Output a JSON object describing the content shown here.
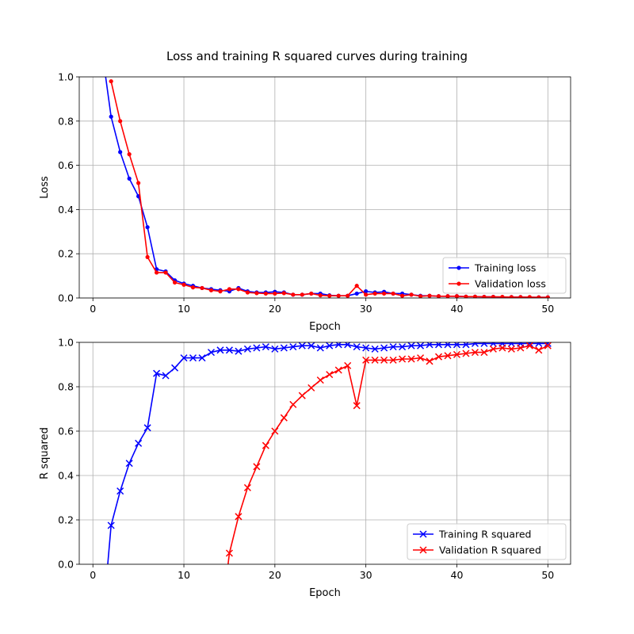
{
  "title": "Loss and training R squared curves during training",
  "chart_data": [
    {
      "type": "line",
      "xlabel": "Epoch",
      "ylabel": "Loss",
      "xlim": [
        -1.5,
        52.5
      ],
      "ylim": [
        0,
        1
      ],
      "xticks": [
        0,
        10,
        20,
        30,
        40,
        50
      ],
      "yticks": [
        0,
        0.2,
        0.4,
        0.6,
        0.8,
        1.0
      ],
      "ytick_labels": [
        "0.0",
        "0.2",
        "0.4",
        "0.6",
        "0.8",
        "1.0"
      ],
      "grid": true,
      "legend_position": "lower right",
      "series": [
        {
          "name": "Training loss",
          "color": "#0000ff",
          "marker": "dot",
          "x": [
            1,
            2,
            3,
            4,
            5,
            6,
            7,
            8,
            9,
            10,
            11,
            12,
            13,
            14,
            15,
            16,
            17,
            18,
            19,
            20,
            21,
            22,
            23,
            24,
            25,
            26,
            27,
            28,
            29,
            30,
            31,
            32,
            33,
            34,
            35,
            36,
            37,
            38,
            39,
            40,
            41,
            42,
            43,
            44,
            45,
            46,
            47,
            48,
            49,
            50
          ],
          "values": [
            1.12,
            0.82,
            0.66,
            0.54,
            0.46,
            0.32,
            0.13,
            0.12,
            0.08,
            0.065,
            0.055,
            0.045,
            0.04,
            0.035,
            0.03,
            0.045,
            0.03,
            0.025,
            0.025,
            0.028,
            0.025,
            0.015,
            0.015,
            0.02,
            0.02,
            0.012,
            0.01,
            0.01,
            0.02,
            0.03,
            0.025,
            0.028,
            0.02,
            0.02,
            0.015,
            0.01,
            0.01,
            0.008,
            0.008,
            0.008,
            0.006,
            0.006,
            0.005,
            0.005,
            0.004,
            0.004,
            0.004,
            0.003,
            0.003,
            0.003
          ]
        },
        {
          "name": "Validation loss",
          "color": "#ff0000",
          "marker": "dot",
          "x": [
            2,
            3,
            4,
            5,
            6,
            7,
            8,
            9,
            10,
            11,
            12,
            13,
            14,
            15,
            16,
            17,
            18,
            19,
            20,
            21,
            22,
            23,
            24,
            25,
            26,
            27,
            28,
            29,
            30,
            31,
            32,
            33,
            34,
            35,
            36,
            37,
            38,
            39,
            40,
            41,
            42,
            43,
            44,
            45,
            46,
            47,
            48,
            49,
            50
          ],
          "values": [
            0.98,
            0.8,
            0.65,
            0.52,
            0.185,
            0.115,
            0.115,
            0.07,
            0.06,
            0.048,
            0.045,
            0.035,
            0.03,
            0.04,
            0.04,
            0.025,
            0.022,
            0.02,
            0.02,
            0.022,
            0.015,
            0.015,
            0.02,
            0.012,
            0.01,
            0.01,
            0.01,
            0.055,
            0.015,
            0.02,
            0.02,
            0.02,
            0.01,
            0.015,
            0.008,
            0.01,
            0.008,
            0.008,
            0.008,
            0.006,
            0.006,
            0.005,
            0.005,
            0.005,
            0.004,
            0.004,
            0.004,
            0.003,
            0.003
          ]
        }
      ]
    },
    {
      "type": "line",
      "xlabel": "Epoch",
      "ylabel": "R squared",
      "xlim": [
        -1.5,
        52.5
      ],
      "ylim": [
        0,
        1
      ],
      "xticks": [
        0,
        10,
        20,
        30,
        40,
        50
      ],
      "yticks": [
        0,
        0.2,
        0.4,
        0.6,
        0.8,
        1.0
      ],
      "ytick_labels": [
        "0.0",
        "0.2",
        "0.4",
        "0.6",
        "0.8",
        "1.0"
      ],
      "grid": true,
      "legend_position": "lower right",
      "series": [
        {
          "name": "Training R squared",
          "color": "#0000ff",
          "marker": "x",
          "x": [
            1,
            2,
            3,
            4,
            5,
            6,
            7,
            8,
            9,
            10,
            11,
            12,
            13,
            14,
            15,
            16,
            17,
            18,
            19,
            20,
            21,
            22,
            23,
            24,
            25,
            26,
            27,
            28,
            29,
            30,
            31,
            32,
            33,
            34,
            35,
            36,
            37,
            38,
            39,
            40,
            41,
            42,
            43,
            44,
            45,
            46,
            47,
            48,
            49,
            50
          ],
          "values": [
            -0.3,
            0.175,
            0.33,
            0.455,
            0.545,
            0.615,
            0.86,
            0.85,
            0.885,
            0.93,
            0.93,
            0.93,
            0.955,
            0.965,
            0.965,
            0.96,
            0.97,
            0.975,
            0.98,
            0.97,
            0.975,
            0.98,
            0.985,
            0.985,
            0.975,
            0.985,
            0.99,
            0.99,
            0.98,
            0.975,
            0.97,
            0.975,
            0.98,
            0.98,
            0.985,
            0.985,
            0.99,
            0.99,
            0.99,
            0.99,
            0.99,
            0.995,
            0.995,
            0.995,
            0.995,
            0.995,
            0.995,
            0.995,
            0.995,
            0.995
          ]
        },
        {
          "name": "Validation R squared",
          "color": "#ff0000",
          "marker": "x",
          "x": [
            14,
            15,
            16,
            17,
            18,
            19,
            20,
            21,
            22,
            23,
            24,
            25,
            26,
            27,
            28,
            29,
            30,
            31,
            32,
            33,
            34,
            35,
            36,
            37,
            38,
            39,
            40,
            41,
            42,
            43,
            44,
            45,
            46,
            47,
            48,
            49,
            50
          ],
          "values": [
            -0.3,
            0.05,
            0.215,
            0.345,
            0.44,
            0.535,
            0.6,
            0.66,
            0.72,
            0.76,
            0.795,
            0.83,
            0.855,
            0.875,
            0.895,
            0.715,
            0.92,
            0.92,
            0.92,
            0.92,
            0.925,
            0.925,
            0.93,
            0.915,
            0.935,
            0.94,
            0.945,
            0.95,
            0.955,
            0.955,
            0.97,
            0.975,
            0.97,
            0.975,
            0.985,
            0.965,
            0.985
          ]
        }
      ]
    }
  ]
}
